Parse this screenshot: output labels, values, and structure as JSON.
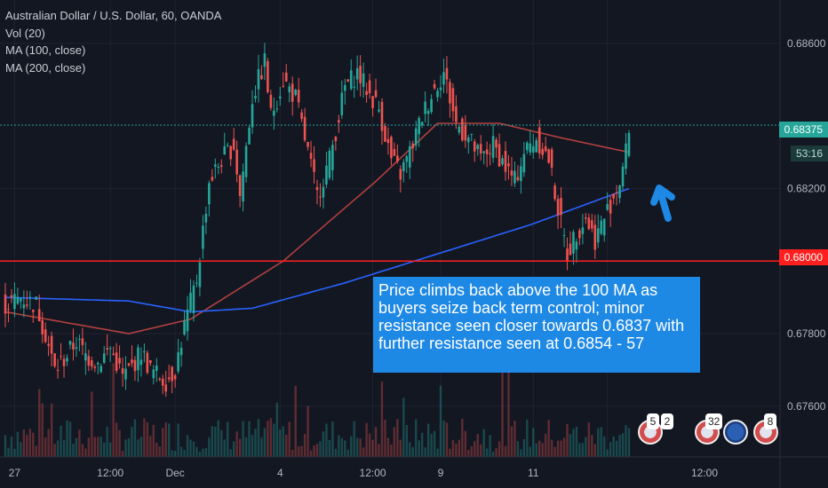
{
  "legend": {
    "title": "Australian Dollar / U.S. Dollar, 60, OANDA",
    "vol": "Vol (20)",
    "ma100": "MA (100, close)",
    "ma200": "MA (200, close)"
  },
  "price_tags": {
    "current": "0.68375",
    "countdown": "53:16",
    "support": "0.68000"
  },
  "callout_text": "Price climbs back above the 100 MA as buyers seize back term control; minor resistance seen closer towards 0.6837 with further resistance seen at 0.6854 - 57",
  "event_badges": [
    "5",
    "2",
    "32",
    "8"
  ],
  "colors": {
    "background": "#131722",
    "up": "#26a69a",
    "down": "#ef5350",
    "ma100": "#b2413e",
    "ma200": "#2962ff",
    "support_line": "#ff1f1f",
    "current_line": "#26a69a",
    "callout": "#1e88e5"
  },
  "chart_data": {
    "type": "candlestick",
    "title": "Australian Dollar / U.S. Dollar, 60, OANDA",
    "ylim": [
      0.6746,
      0.6872
    ],
    "y_ticks": [
      "0.68600",
      "0.68200",
      "0.67800",
      "0.67600"
    ],
    "x_ticks": [
      "27",
      "12:00",
      "Dec",
      "4",
      "12:00",
      "9",
      "11",
      "12:00"
    ],
    "support_level": 0.68,
    "current_price": 0.68375,
    "close_path": [
      [
        0,
        0.6788
      ],
      [
        5,
        0.679
      ],
      [
        10,
        0.6788
      ],
      [
        13,
        0.678
      ],
      [
        16,
        0.677
      ],
      [
        19,
        0.6773
      ],
      [
        23,
        0.6778
      ],
      [
        26,
        0.6774
      ],
      [
        30,
        0.6772
      ],
      [
        34,
        0.6776
      ],
      [
        38,
        0.6768
      ],
      [
        41,
        0.6771
      ],
      [
        44,
        0.6775
      ],
      [
        47,
        0.677
      ],
      [
        52,
        0.6767
      ],
      [
        55,
        0.677
      ],
      [
        58,
        0.6782
      ],
      [
        62,
        0.6795
      ],
      [
        66,
        0.6822
      ],
      [
        70,
        0.6828
      ],
      [
        74,
        0.6832
      ],
      [
        76,
        0.6818
      ],
      [
        80,
        0.6845
      ],
      [
        84,
        0.6855
      ],
      [
        86,
        0.684
      ],
      [
        90,
        0.685
      ],
      [
        94,
        0.6845
      ],
      [
        98,
        0.683
      ],
      [
        101,
        0.6818
      ],
      [
        105,
        0.6828
      ],
      [
        110,
        0.6848
      ],
      [
        114,
        0.6852
      ],
      [
        118,
        0.6846
      ],
      [
        121,
        0.6842
      ],
      [
        125,
        0.6828
      ],
      [
        128,
        0.6824
      ],
      [
        131,
        0.683
      ],
      [
        135,
        0.684
      ],
      [
        138,
        0.6846
      ],
      [
        142,
        0.6852
      ],
      [
        146,
        0.6838
      ],
      [
        150,
        0.6834
      ],
      [
        154,
        0.6828
      ],
      [
        158,
        0.6832
      ],
      [
        162,
        0.6826
      ],
      [
        165,
        0.6822
      ],
      [
        168,
        0.683
      ],
      [
        172,
        0.6834
      ],
      [
        176,
        0.6828
      ],
      [
        180,
        0.681
      ],
      [
        182,
        0.6802
      ],
      [
        185,
        0.6808
      ],
      [
        188,
        0.6812
      ],
      [
        191,
        0.6806
      ],
      [
        194,
        0.6812
      ],
      [
        197,
        0.6818
      ],
      [
        199,
        0.6822
      ],
      [
        201,
        0.683
      ],
      [
        202,
        0.6837
      ]
    ],
    "series": [
      {
        "name": "MA (100, close)",
        "values": [
          [
            0,
            0.6786
          ],
          [
            40,
            0.678
          ],
          [
            60,
            0.6784
          ],
          [
            90,
            0.68
          ],
          [
            120,
            0.6822
          ],
          [
            140,
            0.6838
          ],
          [
            160,
            0.6838
          ],
          [
            180,
            0.6834
          ],
          [
            202,
            0.683
          ]
        ]
      },
      {
        "name": "MA (200, close)",
        "values": [
          [
            0,
            0.679
          ],
          [
            40,
            0.6789
          ],
          [
            60,
            0.6786
          ],
          [
            80,
            0.6787
          ],
          [
            110,
            0.6794
          ],
          [
            140,
            0.6802
          ],
          [
            170,
            0.681
          ],
          [
            202,
            0.682
          ]
        ]
      }
    ],
    "volume_ylim": [
      0,
      100
    ],
    "last_index": 202
  }
}
